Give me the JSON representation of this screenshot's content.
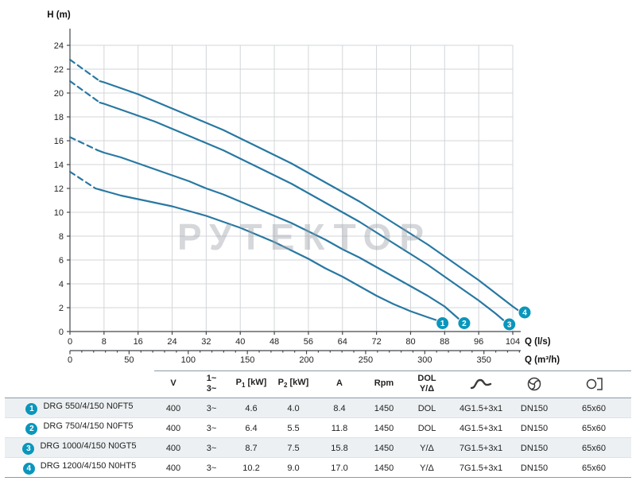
{
  "watermark": "РУТЕКТОР",
  "chart_data": {
    "type": "line",
    "title": "",
    "ylabel": "H (m)",
    "xlabel_ls": "Q (l/s)",
    "xlabel_m3h": "Q (m³/h)",
    "ylim": [
      0,
      24
    ],
    "y_ticks": [
      0,
      2,
      4,
      6,
      8,
      10,
      12,
      14,
      16,
      18,
      20,
      22,
      24
    ],
    "x_ticks_ls": [
      0,
      8,
      16,
      24,
      32,
      40,
      48,
      56,
      64,
      72,
      80,
      88,
      96,
      104
    ],
    "x_ticks_m3h": [
      0,
      50,
      100,
      150,
      200,
      250,
      300,
      350
    ],
    "grid": true,
    "legend_position": "none",
    "curve_color": "#2878a2",
    "marker_color": "#0a96bc",
    "series": [
      {
        "label": "1",
        "name": "DRG 550/4/150 N0FT5",
        "dashed": [
          [
            0,
            13.4
          ],
          [
            6,
            12.0
          ]
        ],
        "points": [
          [
            6,
            12.0
          ],
          [
            8,
            11.8
          ],
          [
            12,
            11.4
          ],
          [
            16,
            11.1
          ],
          [
            20,
            10.8
          ],
          [
            24,
            10.5
          ],
          [
            28,
            10.1
          ],
          [
            32,
            9.7
          ],
          [
            36,
            9.2
          ],
          [
            40,
            8.7
          ],
          [
            44,
            8.1
          ],
          [
            48,
            7.5
          ],
          [
            52,
            6.8
          ],
          [
            56,
            6.1
          ],
          [
            60,
            5.3
          ],
          [
            64,
            4.6
          ],
          [
            68,
            3.8
          ],
          [
            72,
            3.0
          ],
          [
            76,
            2.3
          ],
          [
            80,
            1.7
          ],
          [
            84,
            1.2
          ],
          [
            86.5,
            0.9
          ]
        ],
        "marker": [
          87.5,
          0.7
        ]
      },
      {
        "label": "2",
        "name": "DRG 750/4/150 N0FT5",
        "dashed": [
          [
            0,
            16.3
          ],
          [
            6.5,
            15.2
          ]
        ],
        "points": [
          [
            6.5,
            15.2
          ],
          [
            8,
            15.0
          ],
          [
            12,
            14.6
          ],
          [
            16,
            14.1
          ],
          [
            20,
            13.6
          ],
          [
            24,
            13.1
          ],
          [
            28,
            12.6
          ],
          [
            32,
            12.0
          ],
          [
            36,
            11.5
          ],
          [
            40,
            10.9
          ],
          [
            44,
            10.3
          ],
          [
            48,
            9.7
          ],
          [
            52,
            9.1
          ],
          [
            56,
            8.4
          ],
          [
            60,
            7.7
          ],
          [
            64,
            6.9
          ],
          [
            68,
            6.2
          ],
          [
            72,
            5.4
          ],
          [
            76,
            4.6
          ],
          [
            80,
            3.8
          ],
          [
            84,
            3.0
          ],
          [
            88,
            2.1
          ],
          [
            91.5,
            1.0
          ]
        ],
        "marker": [
          92.6,
          0.7
        ]
      },
      {
        "label": "3",
        "name": "DRG 1000/4/150 N0GT5",
        "dashed": [
          [
            0,
            21.0
          ],
          [
            7,
            19.2
          ]
        ],
        "points": [
          [
            7,
            19.2
          ],
          [
            8,
            19.1
          ],
          [
            12,
            18.6
          ],
          [
            16,
            18.1
          ],
          [
            20,
            17.6
          ],
          [
            24,
            17.0
          ],
          [
            28,
            16.4
          ],
          [
            32,
            15.8
          ],
          [
            36,
            15.2
          ],
          [
            40,
            14.5
          ],
          [
            44,
            13.8
          ],
          [
            48,
            13.1
          ],
          [
            52,
            12.4
          ],
          [
            56,
            11.6
          ],
          [
            60,
            10.8
          ],
          [
            64,
            10.0
          ],
          [
            68,
            9.2
          ],
          [
            72,
            8.3
          ],
          [
            76,
            7.4
          ],
          [
            80,
            6.5
          ],
          [
            84,
            5.6
          ],
          [
            88,
            4.6
          ],
          [
            92,
            3.6
          ],
          [
            96,
            2.6
          ],
          [
            100,
            1.5
          ],
          [
            102.3,
            0.8
          ]
        ],
        "marker": [
          103.2,
          0.6
        ]
      },
      {
        "label": "4",
        "name": "DRG 1200/4/150 N0HT5",
        "dashed": [
          [
            0,
            22.8
          ],
          [
            7,
            21.0
          ]
        ],
        "points": [
          [
            7,
            21.0
          ],
          [
            8,
            20.9
          ],
          [
            12,
            20.4
          ],
          [
            16,
            19.9
          ],
          [
            20,
            19.3
          ],
          [
            24,
            18.7
          ],
          [
            28,
            18.1
          ],
          [
            32,
            17.5
          ],
          [
            36,
            16.9
          ],
          [
            40,
            16.2
          ],
          [
            44,
            15.5
          ],
          [
            48,
            14.8
          ],
          [
            52,
            14.1
          ],
          [
            56,
            13.3
          ],
          [
            60,
            12.5
          ],
          [
            64,
            11.7
          ],
          [
            68,
            10.9
          ],
          [
            72,
            10.0
          ],
          [
            76,
            9.1
          ],
          [
            80,
            8.2
          ],
          [
            84,
            7.3
          ],
          [
            88,
            6.3
          ],
          [
            92,
            5.3
          ],
          [
            96,
            4.3
          ],
          [
            100,
            3.2
          ],
          [
            104,
            2.1
          ],
          [
            106,
            1.6
          ]
        ],
        "marker": [
          106.8,
          1.6
        ]
      }
    ]
  },
  "table": {
    "headers": {
      "model": "",
      "v": "V",
      "phase": {
        "line1": "1~",
        "line2": "3~"
      },
      "p1": {
        "base": "P",
        "sub": "1",
        "unit": " [kW]"
      },
      "p2": {
        "base": "P",
        "sub": "2",
        "unit": " [kW]"
      },
      "a": "A",
      "rpm": "Rpm",
      "dol": {
        "line1": "DOL",
        "line2": "Y/Δ"
      },
      "icons": [
        "cable-icon",
        "impeller-icon",
        "free-passage-icon"
      ]
    },
    "rows": [
      {
        "num": "1",
        "model": "DRG 550/4/150 N0FT5",
        "v": "400",
        "phase": "3~",
        "p1": "4.6",
        "p2": "4.0",
        "a": "8.4",
        "rpm": "1450",
        "start": "DOL",
        "cable": "4G1.5+3x1",
        "dn": "DN150",
        "passage": "65x60"
      },
      {
        "num": "2",
        "model": "DRG 750/4/150 N0FT5",
        "v": "400",
        "phase": "3~",
        "p1": "6.4",
        "p2": "5.5",
        "a": "11.8",
        "rpm": "1450",
        "start": "DOL",
        "cable": "4G1.5+3x1",
        "dn": "DN150",
        "passage": "65x60"
      },
      {
        "num": "3",
        "model": "DRG 1000/4/150 N0GT5",
        "v": "400",
        "phase": "3~",
        "p1": "8.7",
        "p2": "7.5",
        "a": "15.8",
        "rpm": "1450",
        "start": "Y/Δ",
        "cable": "7G1.5+3x1",
        "dn": "DN150",
        "passage": "65x60"
      },
      {
        "num": "4",
        "model": "DRG 1200/4/150 N0HT5",
        "v": "400",
        "phase": "3~",
        "p1": "10.2",
        "p2": "9.0",
        "a": "17.0",
        "rpm": "1450",
        "start": "Y/Δ",
        "cable": "7G1.5+3x1",
        "dn": "DN150",
        "passage": "65x60"
      }
    ]
  }
}
